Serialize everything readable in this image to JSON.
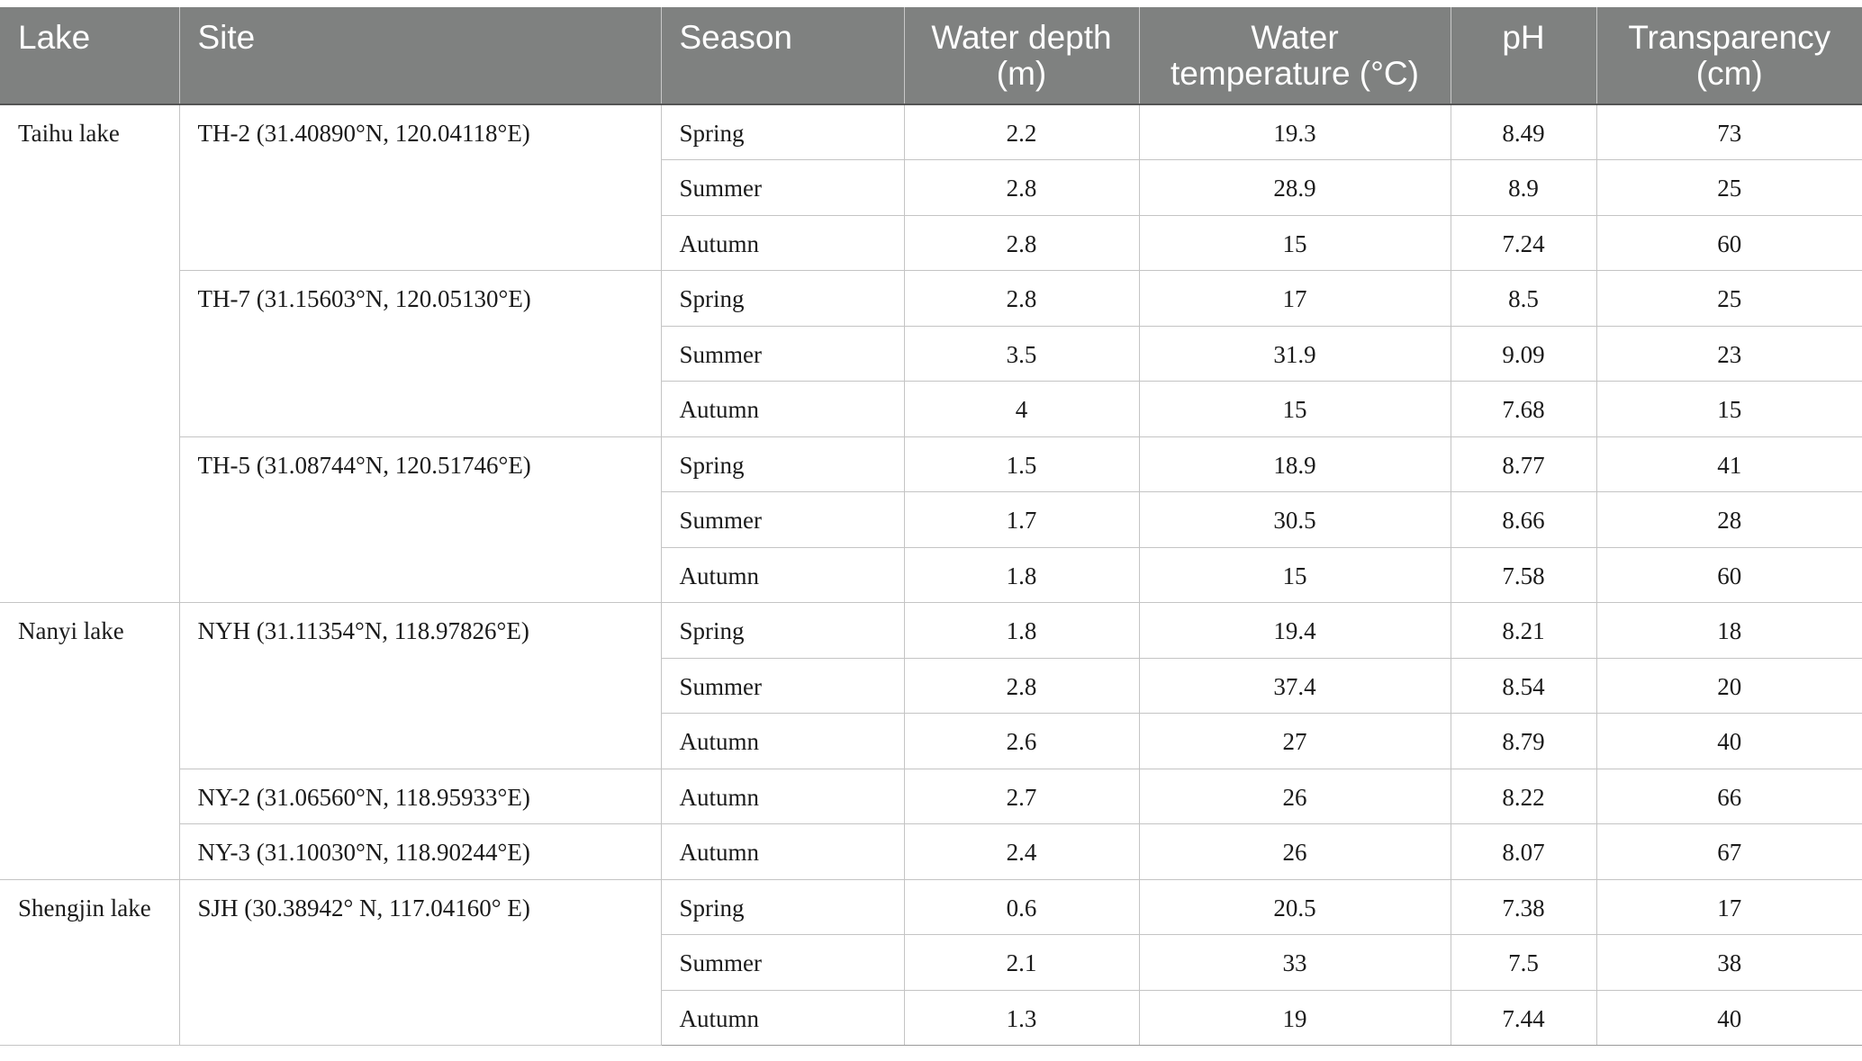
{
  "headers": {
    "lake": "Lake",
    "site": "Site",
    "season": "Season",
    "depth_line1": "Water depth",
    "depth_line2": "(m)",
    "temp_line1": "Water",
    "temp_line2": "temperature (°C)",
    "ph": "pH",
    "trans_line1": "Transparency",
    "trans_line2": "(cm)"
  },
  "lakes": {
    "taihu": "Taihu lake",
    "nanyi": "Nanyi lake",
    "shengjin": "Shengjin lake"
  },
  "sites": {
    "th2": "TH-2 (31.40890°N, 120.04118°E)",
    "th7": "TH-7 (31.15603°N, 120.05130°E)",
    "th5": "TH-5 (31.08744°N, 120.51746°E)",
    "nyh": "NYH (31.11354°N, 118.97826°E)",
    "ny2": "NY-2 (31.06560°N, 118.95933°E)",
    "ny3": "NY-3 (31.10030°N, 118.90244°E)",
    "sjh": "SJH (30.38942° N, 117.04160° E)"
  },
  "rows": [
    {
      "season": "Spring",
      "depth": "2.2",
      "temp": "19.3",
      "ph": "8.49",
      "trans": "73"
    },
    {
      "season": "Summer",
      "depth": "2.8",
      "temp": "28.9",
      "ph": "8.9",
      "trans": "25"
    },
    {
      "season": "Autumn",
      "depth": "2.8",
      "temp": "15",
      "ph": "7.24",
      "trans": "60"
    },
    {
      "season": "Spring",
      "depth": "2.8",
      "temp": "17",
      "ph": "8.5",
      "trans": "25"
    },
    {
      "season": "Summer",
      "depth": "3.5",
      "temp": "31.9",
      "ph": "9.09",
      "trans": "23"
    },
    {
      "season": "Autumn",
      "depth": "4",
      "temp": "15",
      "ph": "7.68",
      "trans": "15"
    },
    {
      "season": "Spring",
      "depth": "1.5",
      "temp": "18.9",
      "ph": "8.77",
      "trans": "41"
    },
    {
      "season": "Summer",
      "depth": "1.7",
      "temp": "30.5",
      "ph": "8.66",
      "trans": "28"
    },
    {
      "season": "Autumn",
      "depth": "1.8",
      "temp": "15",
      "ph": "7.58",
      "trans": "60"
    },
    {
      "season": "Spring",
      "depth": "1.8",
      "temp": "19.4",
      "ph": "8.21",
      "trans": "18"
    },
    {
      "season": "Summer",
      "depth": "2.8",
      "temp": "37.4",
      "ph": "8.54",
      "trans": "20"
    },
    {
      "season": "Autumn",
      "depth": "2.6",
      "temp": "27",
      "ph": "8.79",
      "trans": "40"
    },
    {
      "season": "Autumn",
      "depth": "2.7",
      "temp": "26",
      "ph": "8.22",
      "trans": "66"
    },
    {
      "season": "Autumn",
      "depth": "2.4",
      "temp": "26",
      "ph": "8.07",
      "trans": "67"
    },
    {
      "season": "Spring",
      "depth": "0.6",
      "temp": "20.5",
      "ph": "7.38",
      "trans": "17"
    },
    {
      "season": "Summer",
      "depth": "2.1",
      "temp": "33",
      "ph": "7.5",
      "trans": "38"
    },
    {
      "season": "Autumn",
      "depth": "1.3",
      "temp": "19",
      "ph": "7.44",
      "trans": "40"
    }
  ]
}
